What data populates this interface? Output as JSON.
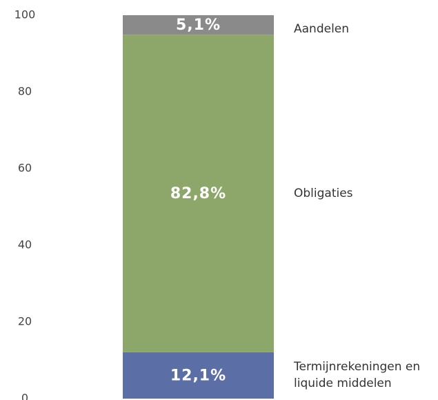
{
  "chart_data": {
    "type": "stacked-bar",
    "series": [
      {
        "name": "Termijnrekeningen en liquide middelen",
        "color": "#5b6fa6",
        "values": [
          12.1
        ],
        "value_labels": [
          "12,1%"
        ]
      },
      {
        "name": "Obligaties",
        "color": "#8da66a",
        "values": [
          82.8
        ],
        "value_labels": [
          "82,8%"
        ]
      },
      {
        "name": "Aandelen",
        "color": "#8a8a8a",
        "values": [
          5.1
        ],
        "value_labels": [
          "5,1%"
        ]
      }
    ],
    "ylim": [
      0,
      100
    ],
    "yticks": [
      0,
      20,
      40,
      60,
      80,
      100
    ],
    "grid": false
  }
}
